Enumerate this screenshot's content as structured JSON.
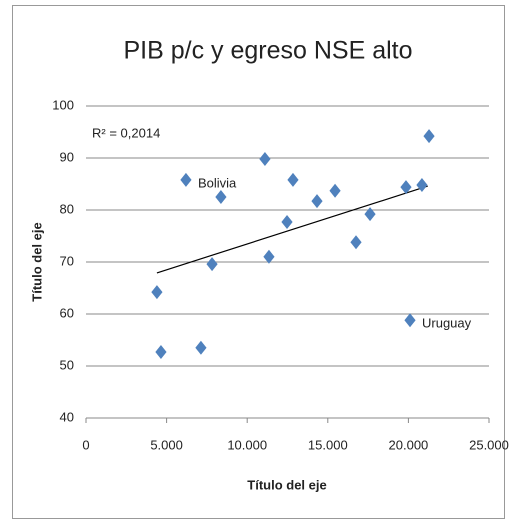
{
  "chart_data": {
    "type": "scatter",
    "title": "PIB p/c y egreso NSE alto",
    "x_label": "Título del eje",
    "y_label": "Título del eje",
    "x": [
      4400,
      4650,
      6200,
      7130,
      7820,
      8370,
      11100,
      11350,
      12470,
      12840,
      14330,
      15450,
      16750,
      17620,
      19850,
      20100,
      20840,
      21280
    ],
    "values": [
      64.2,
      52.7,
      85.8,
      53.5,
      69.6,
      82.5,
      89.8,
      71,
      77.7,
      85.8,
      81.7,
      83.7,
      73.8,
      79.2,
      84.4,
      58.8,
      84.8,
      94.2
    ],
    "color": "#4f81bd",
    "trendline": {
      "x": [
        4400,
        21200
      ],
      "y": [
        67.9,
        84.6
      ],
      "color": "#000000",
      "label": "R² = 0,2014"
    },
    "point_labels": [
      {
        "point": 2,
        "text": "Bolivia"
      },
      {
        "point": 15,
        "text": "Uruguay"
      }
    ],
    "xlim": [
      0,
      25000
    ],
    "xticks": [
      0,
      {
        "value": 5000,
        "label": "5.000"
      },
      {
        "value": 10000,
        "label": "10.000"
      },
      {
        "value": 15000,
        "label": "15.000"
      },
      {
        "value": 20000,
        "label": "20.000"
      },
      {
        "value": 25000,
        "label": "25.000"
      }
    ],
    "ylim": [
      40,
      100
    ],
    "yticks": [
      40,
      50,
      60,
      70,
      80,
      90,
      100
    ],
    "grid": true
  }
}
